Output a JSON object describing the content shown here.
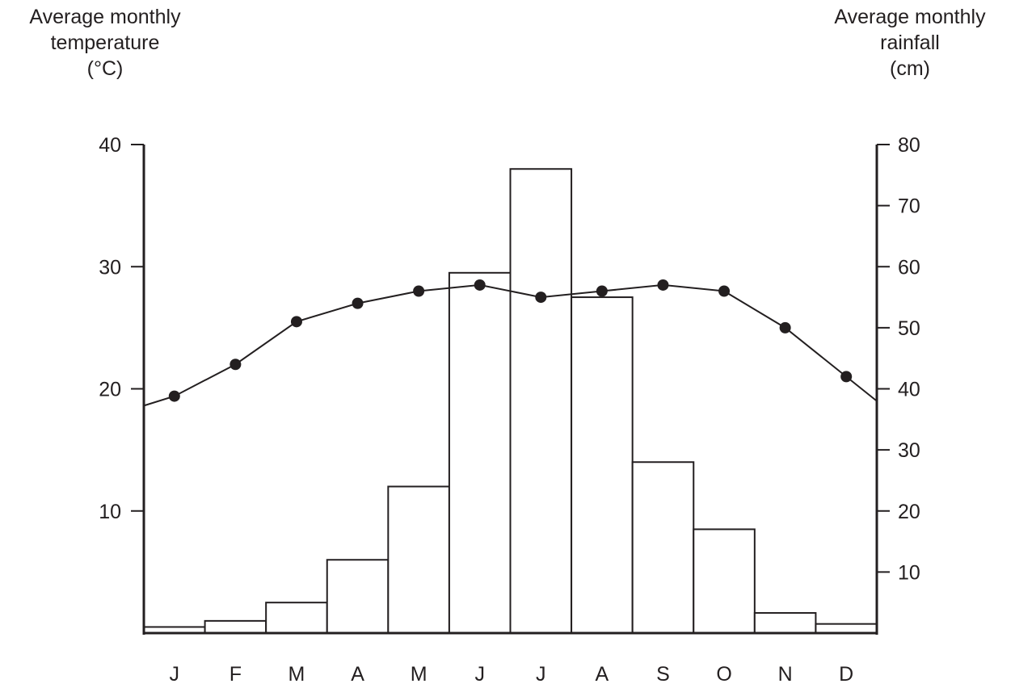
{
  "chart_data": {
    "type": "bar",
    "left_axis_title": [
      "Average monthly",
      "temperature",
      "(°C)"
    ],
    "right_axis_title": [
      "Average monthly",
      "rainfall",
      "(cm)"
    ],
    "categories": [
      "J",
      "F",
      "M",
      "A",
      "M",
      "J",
      "J",
      "A",
      "S",
      "O",
      "N",
      "D"
    ],
    "series": [
      {
        "type": "bar",
        "axis": "right",
        "values": [
          1,
          2,
          5,
          12,
          24,
          59,
          76,
          55,
          28,
          17,
          3.3,
          1.5
        ]
      },
      {
        "type": "line",
        "axis": "left",
        "values": [
          19.4,
          22,
          25.5,
          27,
          28,
          28.5,
          27.5,
          28,
          28.5,
          28,
          25,
          21
        ]
      }
    ],
    "left_axis": {
      "ylim": [
        0,
        40
      ],
      "ticks": [
        10,
        20,
        30,
        40
      ],
      "tick_labels": [
        "10",
        "20",
        "30",
        "40"
      ]
    },
    "right_axis": {
      "ylim": [
        0,
        80
      ],
      "ticks": [
        10,
        20,
        30,
        40,
        50,
        60,
        70,
        80
      ],
      "tick_labels": [
        "10",
        "20",
        "30",
        "40",
        "50",
        "60",
        "70",
        "80"
      ]
    },
    "grid": false,
    "colors": {
      "ink": "#231f20",
      "bar_fill": "#ffffff"
    }
  }
}
